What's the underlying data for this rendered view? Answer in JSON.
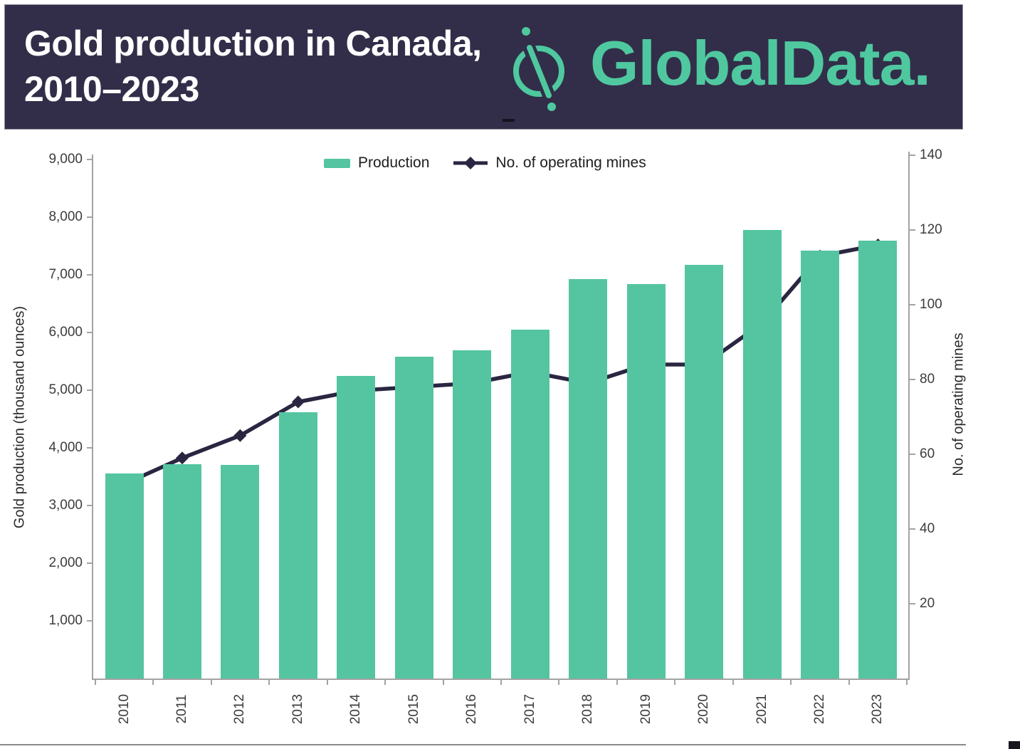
{
  "header": {
    "title_line1": "Gold production in Canada,",
    "title_line2": "2010–2023",
    "brand": "GlobalData.",
    "bg_color": "#322e49",
    "brand_color": "#4fc8a0"
  },
  "legend": [
    {
      "label": "Production",
      "marker": "bar-swatch",
      "color": "#54c5a0"
    },
    {
      "label": "No. of operating mines",
      "marker": "line-diamond",
      "color": "#2a2642"
    }
  ],
  "chart_data": {
    "type": "bar+line combo",
    "title": "Gold production in Canada, 2010-2023",
    "categories": [
      "2010",
      "2011",
      "2012",
      "2013",
      "2014",
      "2015",
      "2016",
      "2017",
      "2018",
      "2019",
      "2020",
      "2021",
      "2022",
      "2023"
    ],
    "series": [
      {
        "name": "Production",
        "type": "bar",
        "axis": "left",
        "color": "#54c5a0",
        "values": [
          3550,
          3720,
          3700,
          4620,
          5250,
          5580,
          5690,
          6050,
          6920,
          6840,
          7170,
          7780,
          7420,
          7590
        ]
      },
      {
        "name": "No. of operating mines",
        "type": "line",
        "axis": "right",
        "color": "#2a2642",
        "values": [
          52,
          59,
          65,
          74,
          77,
          78,
          79,
          82,
          79,
          84,
          84,
          95,
          113,
          116
        ]
      }
    ],
    "left_axis": {
      "label": "Gold production (thousand ounces)",
      "min": 0,
      "max": 9000,
      "ticks": [
        {
          "value": 1000,
          "label": "1,000"
        },
        {
          "value": 2000,
          "label": "2,000"
        },
        {
          "value": 3000,
          "label": "3,000"
        },
        {
          "value": 4000,
          "label": "4,000"
        },
        {
          "value": 5000,
          "label": "5,000"
        },
        {
          "value": 6000,
          "label": "6,000"
        },
        {
          "value": 7000,
          "label": "7,000"
        },
        {
          "value": 8000,
          "label": "8,000"
        },
        {
          "value": 9000,
          "label": "9,000"
        }
      ]
    },
    "right_axis": {
      "label": "No. of operating mines",
      "min": 0,
      "max": 140,
      "ticks": [
        {
          "value": 20,
          "label": "20"
        },
        {
          "value": 40,
          "label": "40"
        },
        {
          "value": 60,
          "label": "60"
        },
        {
          "value": 80,
          "label": "80"
        },
        {
          "value": 100,
          "label": "100"
        },
        {
          "value": 120,
          "label": "120"
        },
        {
          "value": 140,
          "label": "140"
        }
      ]
    },
    "legend_position": "top-center",
    "grid": false
  }
}
